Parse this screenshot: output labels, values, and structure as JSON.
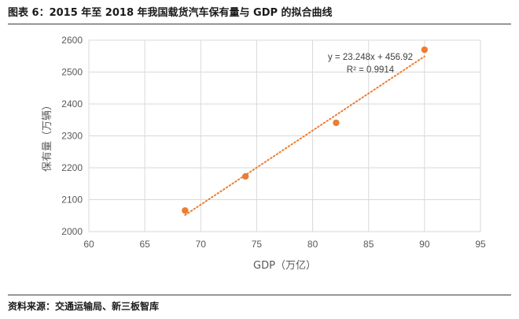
{
  "figure": {
    "title": "图表 6：2015 年至 2018 年我国载货汽车保有量与 GDP 的拟合曲线",
    "source": "资料来源：交通运输局、新三板智库"
  },
  "colors": {
    "marker": "#ED7D31",
    "trendline": "#ED7D31",
    "grid": "#D9D9D9",
    "text": "#595959"
  },
  "chart_data": {
    "type": "scatter",
    "xlabel": "GDP（万亿）",
    "ylabel": "保有量（万辆）",
    "xlim": [
      60,
      95
    ],
    "ylim": [
      2000,
      2600
    ],
    "xticks": [
      60,
      65,
      70,
      75,
      80,
      85,
      90,
      95
    ],
    "yticks": [
      2000,
      2100,
      2200,
      2300,
      2400,
      2500,
      2600
    ],
    "grid": true,
    "series": [
      {
        "points": [
          {
            "x": 68.6,
            "y": 2066
          },
          {
            "x": 74.0,
            "y": 2173
          },
          {
            "x": 82.1,
            "y": 2341
          },
          {
            "x": 90.0,
            "y": 2570
          }
        ]
      }
    ],
    "trendline": {
      "type": "linear",
      "slope": 23.248,
      "intercept": 456.92,
      "equation": "y = 23.248x + 456.92",
      "r_squared": "R² = 0.9914"
    }
  }
}
